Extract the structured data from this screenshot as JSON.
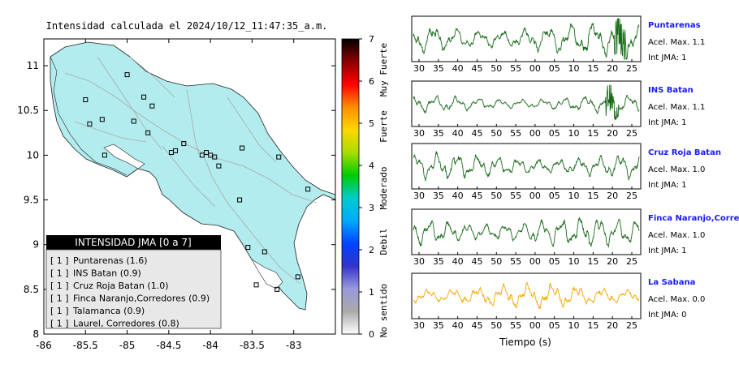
{
  "map": {
    "title": "Intensidad calculada el 2024/10/12_11:47:35_a.m.",
    "x_ticks": [
      "-86",
      "-85.5",
      "-85",
      "-84.5",
      "-84",
      "-83.5",
      "-83"
    ],
    "y_ticks": [
      "11",
      "10.5",
      "10",
      "9.5",
      "9",
      "8.5",
      "8"
    ],
    "xlim": [
      -86,
      -82.5
    ],
    "ylim": [
      8,
      11.3
    ],
    "land_color": "#b2ecee",
    "stations": [
      {
        "lon": -85.0,
        "lat": 10.9
      },
      {
        "lon": -84.8,
        "lat": 10.65
      },
      {
        "lon": -84.7,
        "lat": 10.55
      },
      {
        "lon": -85.5,
        "lat": 10.62
      },
      {
        "lon": -85.45,
        "lat": 10.35
      },
      {
        "lon": -85.3,
        "lat": 10.4
      },
      {
        "lon": -84.92,
        "lat": 10.38
      },
      {
        "lon": -84.75,
        "lat": 10.25
      },
      {
        "lon": -85.27,
        "lat": 10.0
      },
      {
        "lon": -84.42,
        "lat": 10.05
      },
      {
        "lon": -84.32,
        "lat": 10.13
      },
      {
        "lon": -84.1,
        "lat": 10.0
      },
      {
        "lon": -84.05,
        "lat": 10.03
      },
      {
        "lon": -84.0,
        "lat": 10.0
      },
      {
        "lon": -83.95,
        "lat": 9.98
      },
      {
        "lon": -83.9,
        "lat": 9.88
      },
      {
        "lon": -83.62,
        "lat": 10.08
      },
      {
        "lon": -84.47,
        "lat": 10.03
      },
      {
        "lon": -83.18,
        "lat": 9.98
      },
      {
        "lon": -82.83,
        "lat": 9.62
      },
      {
        "lon": -83.65,
        "lat": 9.5
      },
      {
        "lon": -83.55,
        "lat": 8.97
      },
      {
        "lon": -83.35,
        "lat": 8.92
      },
      {
        "lon": -82.95,
        "lat": 8.64
      },
      {
        "lon": -83.45,
        "lat": 8.55
      },
      {
        "lon": -83.2,
        "lat": 8.5
      }
    ],
    "legend": {
      "title": "INTENSIDAD JMA [0 a 7]",
      "items": [
        {
          "badge": "[ 1 ]",
          "text": "Puntarenas (1.6)"
        },
        {
          "badge": "[ 1 ]",
          "text": "INS Batan (0.9)"
        },
        {
          "badge": "[ 1 ]",
          "text": "Cruz Roja Batan (1.0)"
        },
        {
          "badge": "[ 1 ]",
          "text": "Finca Naranjo,Corredores (0.9)"
        },
        {
          "badge": "[ 1 ]",
          "text": "Talamanca (0.9)"
        },
        {
          "badge": "[ 1 ]",
          "text": "Laurel, Corredores (0.8)"
        }
      ]
    }
  },
  "colorbar": {
    "ticks": [
      "7",
      "6",
      "5",
      "4",
      "3",
      "2",
      "1",
      "0"
    ],
    "labels": [
      "Muy Fuerte",
      "Fuerte",
      "Moderado",
      "Debil",
      "No sentido"
    ],
    "stops": [
      "#000000",
      "#8b0000",
      "#ff0000",
      "#ff8c00",
      "#ffd700",
      "#aadd00",
      "#00cc00",
      "#00cccc",
      "#00aaff",
      "#0044ff",
      "#3333cc",
      "#9999dd",
      "#aaaaaa",
      "#ffffff"
    ]
  },
  "chart_data": {
    "type": "line",
    "xlabel": "Tiempo (s)",
    "x_tick_labels": [
      "30",
      "35",
      "40",
      "45",
      "50",
      "55",
      "00",
      "05",
      "10",
      "15",
      "20",
      "25"
    ],
    "series": [
      {
        "name": "Puntarenas",
        "accel_label": "Acel. Max. 1.1",
        "int_label": "Int JMA: 1",
        "color": "#1a6b1a",
        "seed": 3,
        "amp": 0.85,
        "burst_at": 0.92
      },
      {
        "name": "INS Batan",
        "accel_label": "Acel. Max. 1.1",
        "int_label": "Int JMA: 1",
        "color": "#1a6b1a",
        "seed": 7,
        "amp": 0.45,
        "burst_at": 0.88
      },
      {
        "name": "Cruz Roja Batan",
        "accel_label": "Acel. Max. 1.0",
        "int_label": "Int JMA: 1",
        "color": "#1a6b1a",
        "seed": 11,
        "amp": 0.7,
        "burst_at": -1
      },
      {
        "name": "Finca Naranjo,Corredor",
        "accel_label": "Acel. Max. 1.0",
        "int_label": "Int JMA: 1",
        "color": "#1a6b1a",
        "seed": 17,
        "amp": 0.8,
        "burst_at": -1
      },
      {
        "name": "La Sabana",
        "accel_label": "Acel. Max. 0.0",
        "int_label": "Int JMA: 0",
        "color": "#f5a800",
        "seed": 23,
        "amp": 0.65,
        "burst_at": -1
      }
    ]
  }
}
